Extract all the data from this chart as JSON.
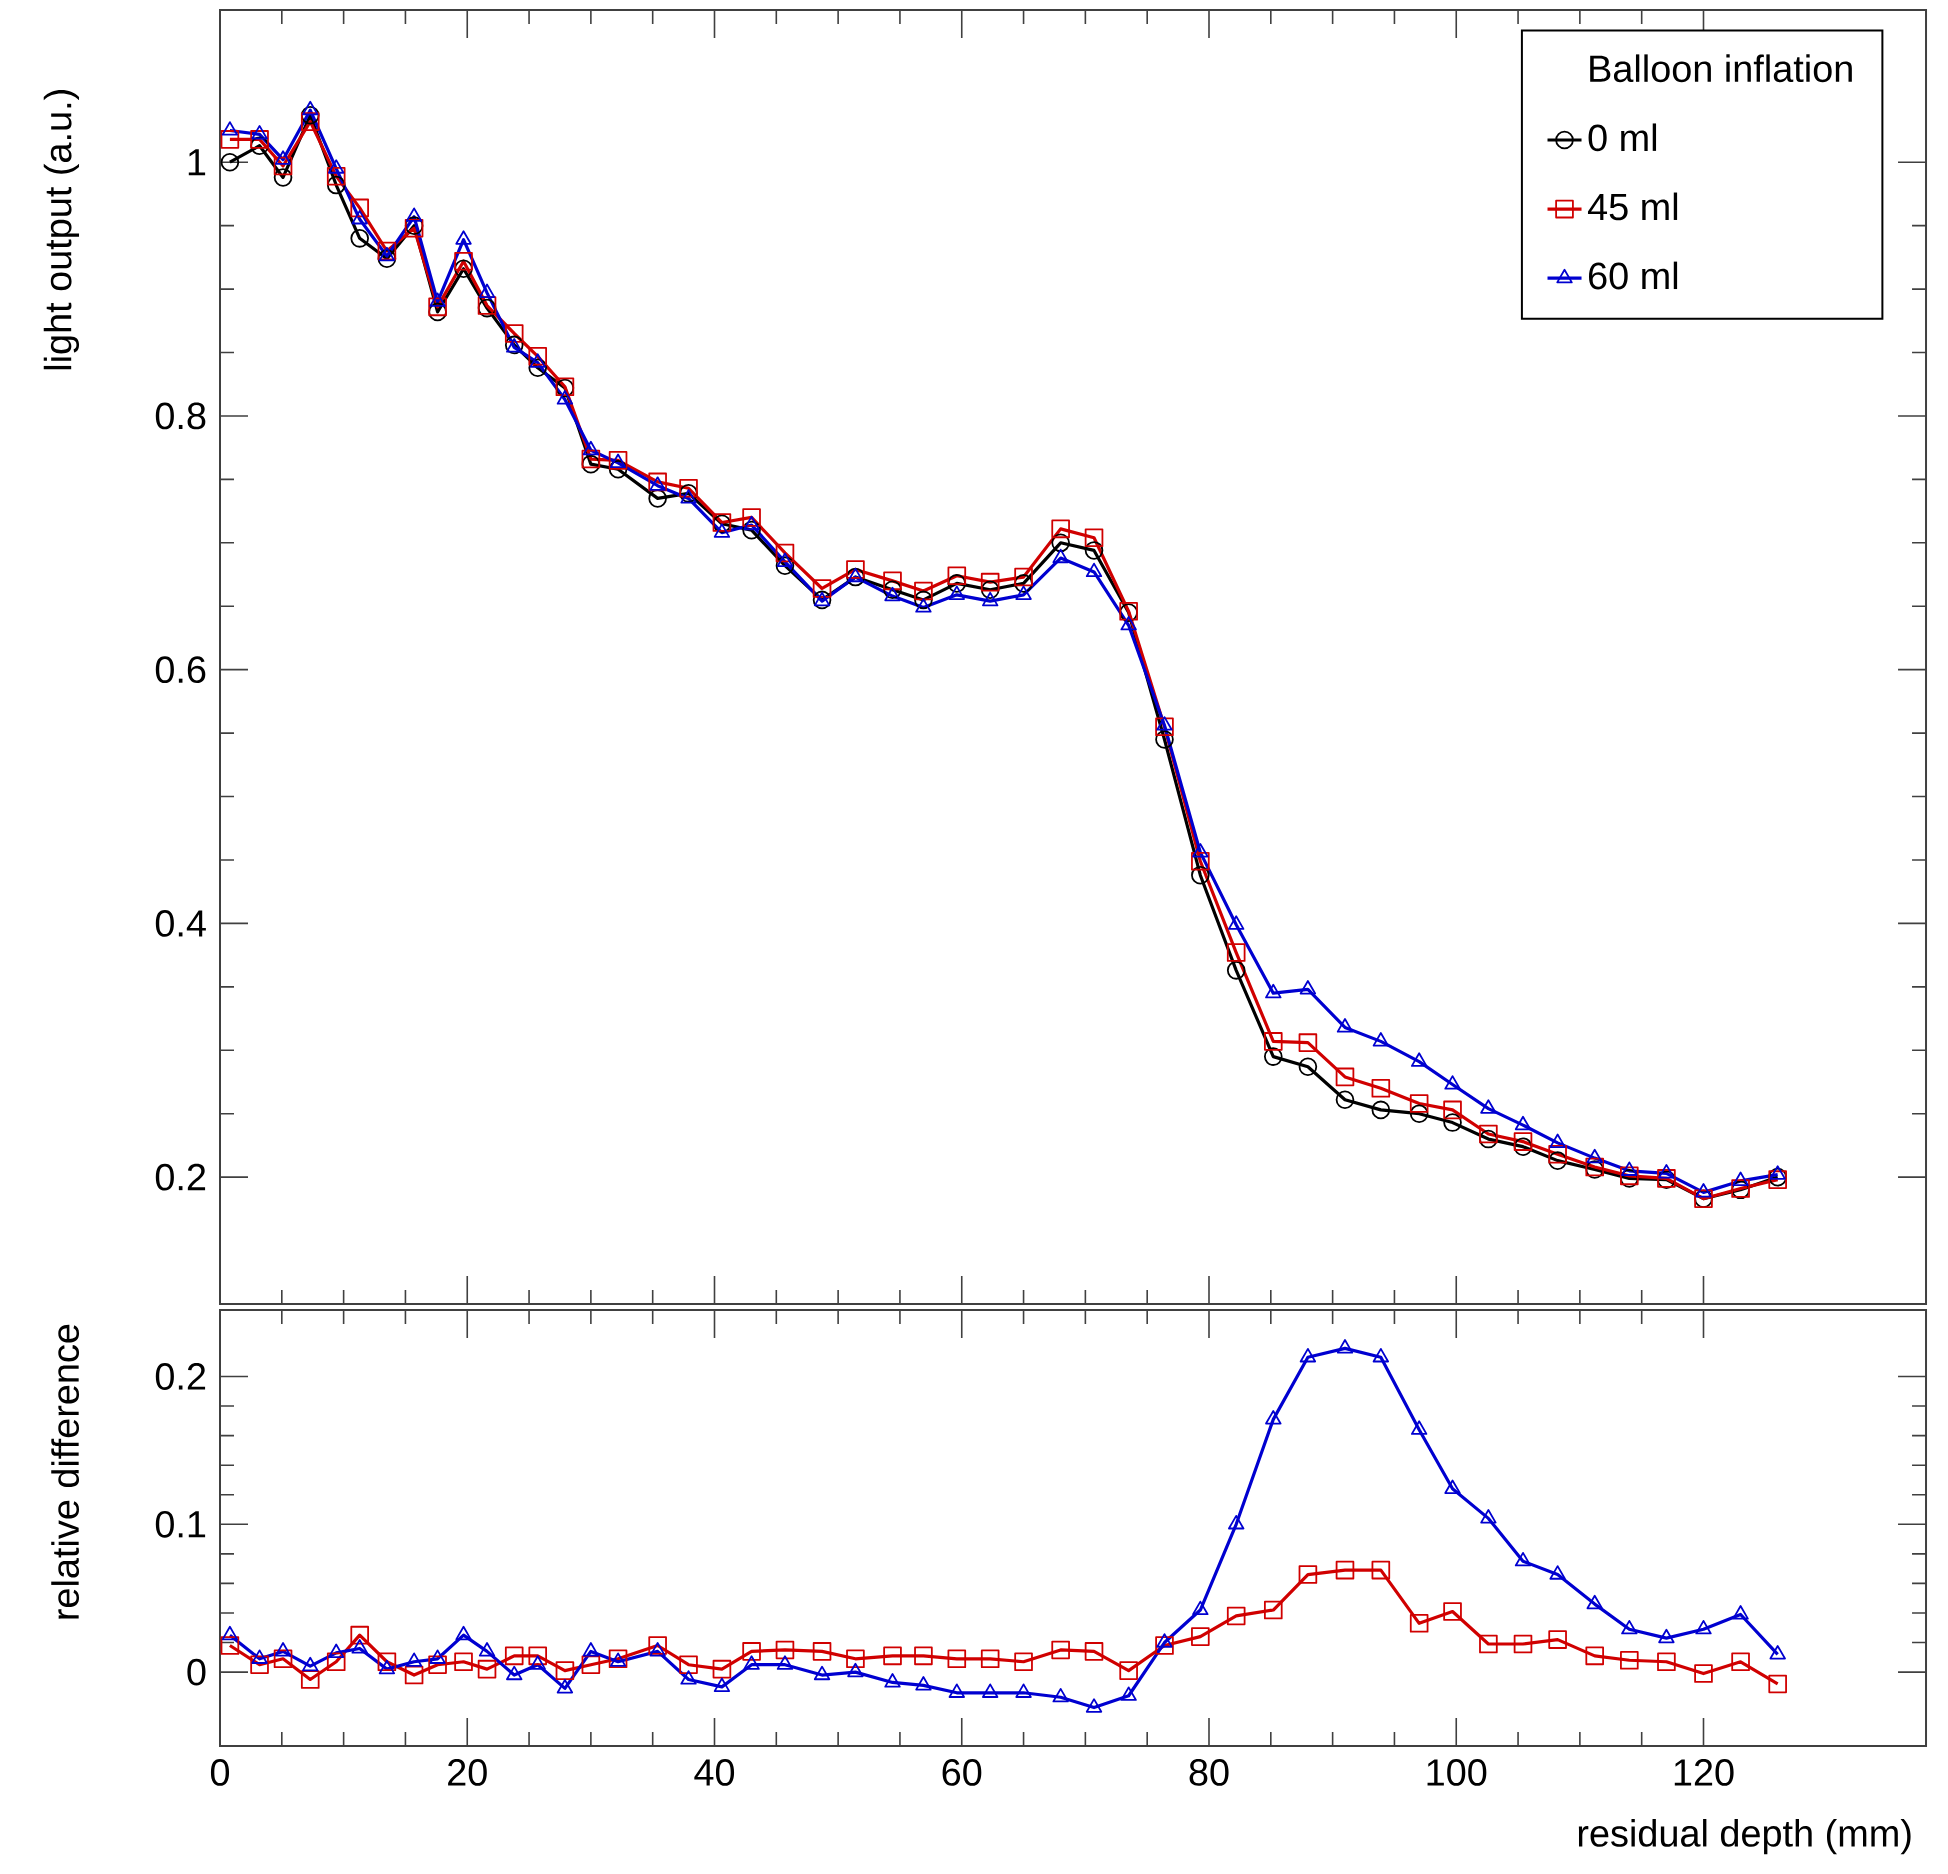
{
  "chart_data": [
    {
      "type": "line",
      "ylabel": "light output (a.u.)",
      "legend_title": "Balloon inflation",
      "legend": "top right",
      "tick_labels": "y",
      "x": [
        0.8,
        3.2,
        5.1,
        7.3,
        9.4,
        11.3,
        13.5,
        15.7,
        17.6,
        19.7,
        21.6,
        23.8,
        25.7,
        27.9,
        30.0,
        32.2,
        35.4,
        37.9,
        40.6,
        43.0,
        45.7,
        48.7,
        51.4,
        54.4,
        56.9,
        59.6,
        62.3,
        65.0,
        68.0,
        70.7,
        73.5,
        76.4,
        79.3,
        82.2,
        85.2,
        88.0,
        91.0,
        93.9,
        97.0,
        99.7,
        102.6,
        105.4,
        108.2,
        111.2,
        114.0,
        117.0,
        120.0,
        123.0,
        126.0
      ],
      "xlim": [
        0,
        138
      ],
      "ylim": [
        0.1,
        1.12
      ],
      "xticks": [
        0,
        20,
        40,
        60,
        80,
        100,
        120
      ],
      "yticks": [
        0.2,
        0.4,
        0.6,
        0.8,
        1
      ],
      "series": [
        {
          "name": "0 ml",
          "color": "#000000",
          "marker": "circle",
          "values": [
            1.0,
            1.013,
            0.988,
            1.037,
            0.982,
            0.94,
            0.924,
            0.95,
            0.882,
            0.916,
            0.885,
            0.856,
            0.838,
            0.822,
            0.762,
            0.758,
            0.735,
            0.739,
            0.715,
            0.71,
            0.682,
            0.655,
            0.673,
            0.663,
            0.655,
            0.668,
            0.663,
            0.668,
            0.7,
            0.694,
            0.645,
            0.545,
            0.438,
            0.363,
            0.295,
            0.287,
            0.261,
            0.253,
            0.25,
            0.243,
            0.23,
            0.224,
            0.213,
            0.206,
            0.199,
            0.198,
            0.183,
            0.19,
            0.2
          ]
        },
        {
          "name": "45 ml",
          "color": "#d00000",
          "marker": "square",
          "values": [
            1.018,
            1.018,
            0.997,
            1.032,
            0.989,
            0.964,
            0.93,
            0.948,
            0.886,
            0.922,
            0.887,
            0.865,
            0.847,
            0.823,
            0.766,
            0.765,
            0.748,
            0.743,
            0.716,
            0.72,
            0.692,
            0.664,
            0.679,
            0.67,
            0.662,
            0.674,
            0.669,
            0.673,
            0.711,
            0.704,
            0.646,
            0.555,
            0.449,
            0.377,
            0.307,
            0.306,
            0.279,
            0.27,
            0.258,
            0.253,
            0.234,
            0.228,
            0.218,
            0.208,
            0.201,
            0.199,
            0.183,
            0.191,
            0.198
          ]
        },
        {
          "name": "60 ml",
          "color": "#0000d0",
          "marker": "triangle",
          "values": [
            1.025,
            1.022,
            1.002,
            1.041,
            0.995,
            0.955,
            0.926,
            0.957,
            0.89,
            0.939,
            0.897,
            0.854,
            0.842,
            0.813,
            0.773,
            0.763,
            0.745,
            0.735,
            0.708,
            0.714,
            0.685,
            0.654,
            0.673,
            0.658,
            0.649,
            0.659,
            0.654,
            0.659,
            0.688,
            0.677,
            0.635,
            0.556,
            0.456,
            0.399,
            0.345,
            0.348,
            0.318,
            0.307,
            0.291,
            0.273,
            0.254,
            0.241,
            0.227,
            0.215,
            0.205,
            0.203,
            0.188,
            0.197,
            0.202
          ]
        }
      ]
    },
    {
      "type": "line",
      "xlabel": "residual depth (mm)",
      "ylabel": "relative difference",
      "x": [
        0.8,
        3.2,
        5.1,
        7.3,
        9.4,
        11.3,
        13.5,
        15.7,
        17.6,
        19.7,
        21.6,
        23.8,
        25.7,
        27.9,
        30.0,
        32.2,
        35.4,
        37.9,
        40.6,
        43.0,
        45.7,
        48.7,
        51.4,
        54.4,
        56.9,
        59.6,
        62.3,
        65.0,
        68.0,
        70.7,
        73.5,
        76.4,
        79.3,
        82.2,
        85.2,
        88.0,
        91.0,
        93.9,
        97.0,
        99.7,
        102.6,
        105.4,
        108.2,
        111.2,
        114.0,
        117.0,
        120.0,
        123.0,
        126.0
      ],
      "xlim": [
        0,
        138
      ],
      "ylim": [
        -0.05,
        0.245
      ],
      "xticks": [
        0,
        20,
        40,
        60,
        80,
        100,
        120
      ],
      "yticks": [
        0,
        0.1,
        0.2
      ],
      "series": [
        {
          "color": "#d00000",
          "marker": "square",
          "values": [
            0.018,
            0.005,
            0.009,
            -0.005,
            0.007,
            0.025,
            0.007,
            -0.002,
            0.005,
            0.007,
            0.002,
            0.011,
            0.011,
            0.001,
            0.005,
            0.009,
            0.018,
            0.005,
            0.002,
            0.014,
            0.015,
            0.014,
            0.009,
            0.011,
            0.011,
            0.009,
            0.009,
            0.007,
            0.015,
            0.014,
            0.001,
            0.018,
            0.024,
            0.038,
            0.042,
            0.066,
            0.069,
            0.069,
            0.033,
            0.041,
            0.019,
            0.019,
            0.022,
            0.011,
            0.008,
            0.007,
            -0.001,
            0.007,
            -0.008
          ]
        },
        {
          "color": "#0000d0",
          "marker": "triangle",
          "values": [
            0.025,
            0.009,
            0.014,
            0.004,
            0.013,
            0.016,
            0.002,
            0.007,
            0.009,
            0.025,
            0.014,
            -0.002,
            0.005,
            -0.011,
            0.014,
            0.007,
            0.014,
            -0.005,
            -0.01,
            0.005,
            0.005,
            -0.002,
            0.0,
            -0.007,
            -0.009,
            -0.014,
            -0.014,
            -0.014,
            -0.017,
            -0.024,
            -0.016,
            0.02,
            0.042,
            0.1,
            0.171,
            0.213,
            0.219,
            0.213,
            0.164,
            0.124,
            0.104,
            0.075,
            0.066,
            0.046,
            0.029,
            0.023,
            0.029,
            0.039,
            0.012
          ]
        }
      ]
    }
  ]
}
